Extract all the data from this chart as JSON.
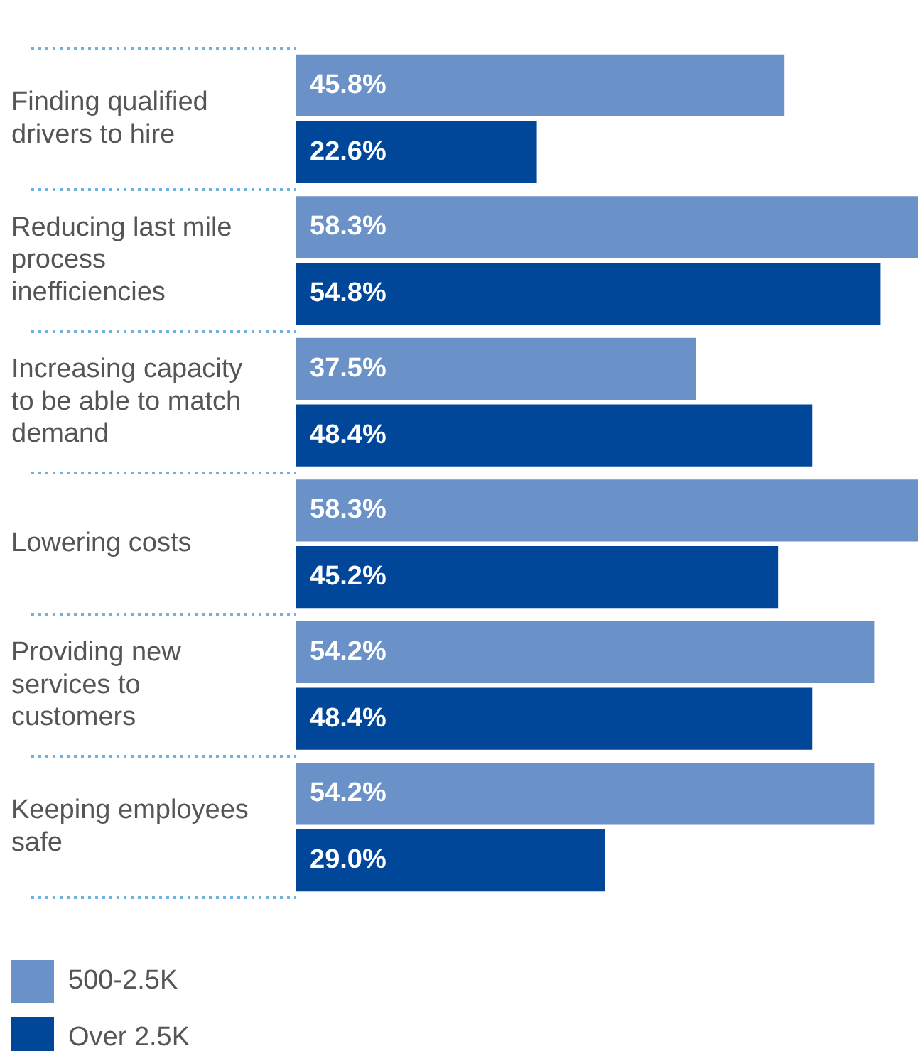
{
  "chart_data": {
    "type": "bar",
    "orientation": "horizontal",
    "categories": [
      "Finding qualified drivers to hire",
      "Reducing last mile process inefficiencies",
      "Increasing capacity to be able to match demand",
      "Lowering costs",
      "Providing new services to customers",
      "Keeping employees safe"
    ],
    "series": [
      {
        "name": "500-2.5K",
        "color": "#6a92c8",
        "values": [
          45.8,
          58.3,
          37.5,
          58.3,
          54.2,
          54.2
        ],
        "value_labels": [
          "45.8%",
          "58.3%",
          "37.5%",
          "58.3%",
          "54.2%",
          "54.2%"
        ]
      },
      {
        "name": "Over 2.5K",
        "color": "#00479a",
        "values": [
          22.6,
          54.8,
          48.4,
          45.2,
          48.4,
          29.0
        ],
        "value_labels": [
          "22.6%",
          "54.8%",
          "48.4%",
          "45.2%",
          "48.4%",
          "29.0%"
        ]
      }
    ],
    "legend": "bottom left"
  }
}
